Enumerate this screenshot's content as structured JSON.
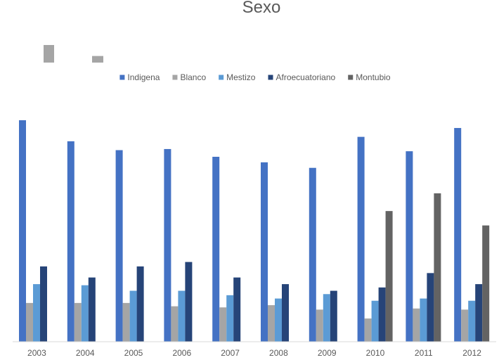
{
  "chart_data": {
    "type": "bar",
    "title": "Sexo",
    "categories": [
      "2003",
      "2004",
      "2005",
      "2006",
      "2007",
      "2008",
      "2009",
      "2010",
      "2011",
      "2012"
    ],
    "ylim": [
      0,
      100
    ],
    "grid": false,
    "legend_position": "top",
    "series": [
      {
        "name": "Indigena",
        "color": "#4472C4",
        "values": [
          100,
          90.5,
          86.5,
          87,
          83.5,
          81,
          78.5,
          92.5,
          86,
          96.5
        ]
      },
      {
        "name": "Blanco",
        "color": "#A5A5A5",
        "values": [
          17.5,
          17.5,
          17.5,
          16,
          15.5,
          16.5,
          14.5,
          10.5,
          15,
          14.5
        ]
      },
      {
        "name": "Mestizo",
        "color": "#5B9BD5",
        "values": [
          26,
          25.5,
          23,
          23,
          21,
          19.5,
          21.5,
          18.5,
          19.5,
          18.5
        ]
      },
      {
        "name": "Afroecuatoriano",
        "color": "#264478",
        "values": [
          34,
          29,
          34,
          36,
          29,
          26,
          23,
          24.5,
          31,
          26
        ]
      },
      {
        "name": "Montubio",
        "color": "#636363",
        "values": [
          null,
          null,
          null,
          null,
          null,
          null,
          null,
          59,
          67,
          52.5
        ]
      }
    ],
    "decor": {
      "color": "#A5A5A5",
      "values": [
        8,
        3
      ]
    }
  }
}
